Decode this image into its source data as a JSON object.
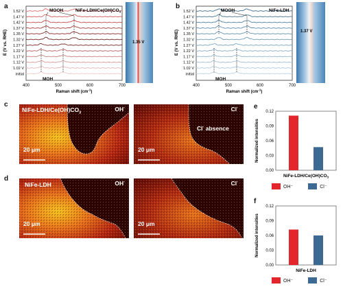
{
  "panels": {
    "a": {
      "letter": "a",
      "sample": "NiFe-LDH/Ce(OH)CO",
      "sample_sub": "3",
      "potentials": [
        "1.52 V",
        "1.47 V",
        "1.42 V",
        "1.37 V",
        "1.35 V",
        "1.32 V",
        "1.27 V",
        "1.22 V",
        "1.17 V",
        "1.12 V",
        "1.02 V",
        "initial"
      ],
      "xlabel": "Raman shift (cm",
      "xlabel_sup": "-1",
      "ylabel": "E (V vs. RHE)",
      "xticks": [
        "400",
        "500",
        "600",
        "700"
      ],
      "mooh_label": "MOOH",
      "moh_label": "MOH",
      "heatmap_label": "1.35 V",
      "line_colors": [
        "#e06a6a",
        "#d35a5a",
        "#c44a4a",
        "#a63a3a",
        "#8e2e2e",
        "#6e2424",
        "#7a2a2a",
        "#b86060",
        "#c98080",
        "#d79a9a",
        "#e5b5b5",
        "#efcaca"
      ]
    },
    "b": {
      "letter": "b",
      "sample": "NiFe-LDH",
      "potentials": [
        "1.52 V",
        "1.47 V",
        "1.42 V",
        "1.37 V",
        "1.35 V",
        "1.32 V",
        "1.27 V",
        "1.22 V",
        "1.17 V",
        "1.12 V",
        "1.02 V",
        "initial"
      ],
      "xlabel": "Raman shift (cm",
      "xlabel_sup": "-1",
      "ylabel": "E (V vs. RHE)",
      "xticks": [
        "400",
        "500",
        "600",
        "700"
      ],
      "mooh_label": "MOOH",
      "moh_label": "MOH",
      "heatmap_label": "1.37 V",
      "line_colors": [
        "#3e6d8e",
        "#47799a",
        "#5182a3",
        "#5b8bab",
        "#6693b2",
        "#719cb9",
        "#7ca5c0",
        "#88aec7",
        "#94b7ce",
        "#a1c0d5",
        "#afcadc",
        "#bdd3e3"
      ]
    },
    "c": {
      "letter": "c",
      "left_label": "NiFe-LDH/Ce(OH)CO",
      "left_label_sub": "3",
      "left_ion": "OH",
      "left_ion_sup": "-",
      "right_ion": "Cl",
      "right_ion_sup": "-",
      "absence": "Cl",
      "absence_sup": "-",
      "absence_tail": " absence",
      "scale_left": "20 μm",
      "scale_right": "20 μm"
    },
    "d": {
      "letter": "d",
      "left_label": "NiFe-LDH",
      "left_ion": "OH",
      "left_ion_sup": "-",
      "right_ion": "Cl",
      "right_ion_sup": "-",
      "scale_left": "20 μm",
      "scale_right": "20 μm"
    },
    "e": {
      "letter": "e",
      "ylabel": "Normalized intensities",
      "yticks": [
        "0.00",
        "0.03",
        "0.06",
        "0.09",
        "0.12"
      ],
      "xlabel": "NiFe-LDH/Ce(OH)CO",
      "xlabel_sub": "3",
      "legend": [
        "OH⁻",
        "Cl⁻"
      ]
    },
    "f": {
      "letter": "f",
      "ylabel": "Normalized intensities",
      "yticks": [
        "0.00",
        "0.03",
        "0.06",
        "0.09",
        "0.12"
      ],
      "xlabel": "NiFe-LDH",
      "legend": [
        "OH⁻",
        "Cl⁻"
      ]
    }
  },
  "colors": {
    "oh": "#e3262b",
    "cl": "#3d6a93",
    "heat_dark": "#1a0000",
    "heat_hot": "#f6c21a"
  },
  "chart_data": [
    {
      "type": "bar",
      "panel": "e",
      "categories": [
        "NiFe-LDH/Ce(OH)CO3"
      ],
      "series": [
        {
          "name": "OH⁻",
          "values": [
            0.111
          ]
        },
        {
          "name": "Cl⁻",
          "values": [
            0.047
          ]
        }
      ],
      "ylabel": "Normalized intensities",
      "ylim": [
        0,
        0.12
      ]
    },
    {
      "type": "bar",
      "panel": "f",
      "categories": [
        "NiFe-LDH"
      ],
      "series": [
        {
          "name": "OH⁻",
          "values": [
            0.072
          ]
        },
        {
          "name": "Cl⁻",
          "values": [
            0.06
          ]
        }
      ],
      "ylabel": "Normalized intensities",
      "ylim": [
        0,
        0.12
      ]
    }
  ]
}
